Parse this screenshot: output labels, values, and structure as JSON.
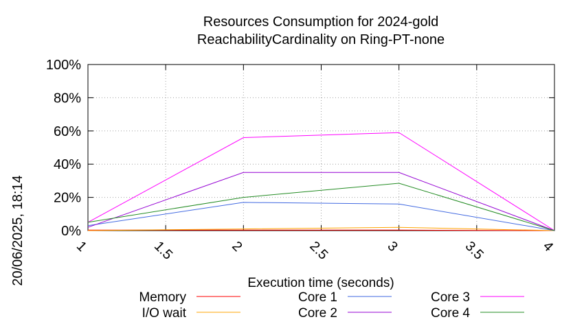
{
  "chart_data": {
    "type": "line",
    "title": "Resources Consumption for 2024-gold",
    "subtitle": "ReachabilityCardinality on Ring-PT-none",
    "xlabel": "Execution time (seconds)",
    "ylabel": "",
    "x": [
      1,
      2,
      3,
      4
    ],
    "xlim": [
      1,
      4
    ],
    "ylim": [
      0,
      100
    ],
    "x_ticks": [
      "1",
      "1.5",
      "2",
      "2.5",
      "3",
      "3.5",
      "4"
    ],
    "y_ticks": [
      "0%",
      "20%",
      "40%",
      "60%",
      "80%",
      "100%"
    ],
    "grid": true,
    "legend_position": "bottom",
    "series": [
      {
        "name": "Memory",
        "color": "#ff0000",
        "values": [
          0.3,
          0.3,
          0.3,
          0
        ]
      },
      {
        "name": "I/O wait",
        "color": "#ffa500",
        "values": [
          0,
          1,
          2,
          0
        ]
      },
      {
        "name": "Core 1",
        "color": "#4169e1",
        "values": [
          3,
          17,
          16,
          0
        ]
      },
      {
        "name": "Core 2",
        "color": "#9400d3",
        "values": [
          2,
          35,
          35,
          0
        ]
      },
      {
        "name": "Core 3",
        "color": "#ff00ff",
        "values": [
          5,
          56,
          59,
          0
        ]
      },
      {
        "name": "Core 4",
        "color": "#228b22",
        "values": [
          5,
          20,
          28.5,
          0
        ]
      }
    ]
  },
  "timestamp": "20/06/2025, 18:14"
}
